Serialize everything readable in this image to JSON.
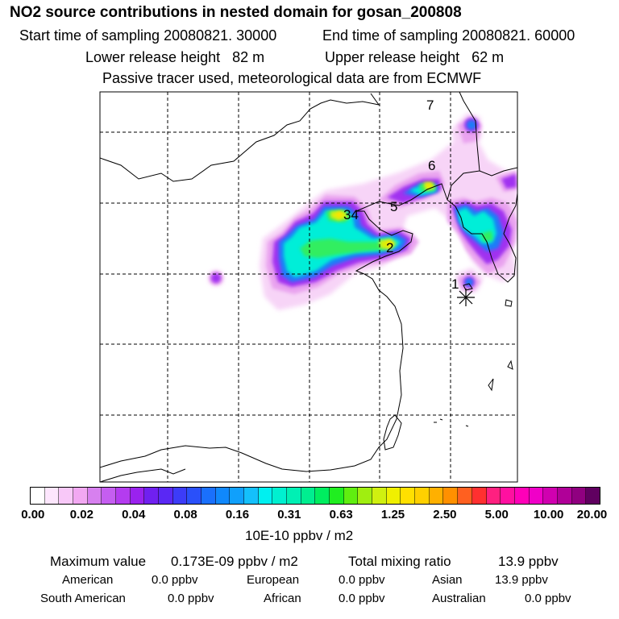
{
  "title": "NO2 source contributions in nested domain for gosan_200808",
  "sampling": {
    "start": "Start time of sampling 20080821. 30000",
    "end": "End time of sampling 20080821. 60000"
  },
  "release": {
    "lower": "Lower release height   82 m",
    "upper": "Upper release height   62 m"
  },
  "note": "Passive tracer used, meteorological data are from ECMWF",
  "map": {
    "sources": [
      {
        "id": "1",
        "label": "1"
      },
      {
        "id": "2",
        "label": "2"
      },
      {
        "id": "34",
        "label": "34"
      },
      {
        "id": "5",
        "label": "5"
      },
      {
        "id": "6",
        "label": "6"
      },
      {
        "id": "7",
        "label": "7"
      }
    ],
    "receptor_marker": "star-burst-icon"
  },
  "colorbar": {
    "ticks": [
      "0.00",
      "0.02",
      "0.04",
      "0.08",
      "0.16",
      "0.31",
      "0.63",
      "1.25",
      "2.50",
      "5.00",
      "10.00",
      "20.00"
    ],
    "unit": "10E-10 ppbv / m2",
    "colors": [
      "#ffffff",
      "#fde6fd",
      "#f8c8f8",
      "#f2a8f2",
      "#d780ef",
      "#c55ef0",
      "#b43cef",
      "#9a22ee",
      "#7020f0",
      "#5a28f4",
      "#3c3cf8",
      "#2a50fa",
      "#1a70fc",
      "#1088fc",
      "#10a0fc",
      "#14c0fc",
      "#00f0f0",
      "#00f0d0",
      "#00f0b4",
      "#00ee90",
      "#00ee60",
      "#20ee20",
      "#60ee10",
      "#a0ee10",
      "#d0f010",
      "#f0f000",
      "#ffe000",
      "#ffd000",
      "#ffb000",
      "#ff9000",
      "#ff6020",
      "#ff3030",
      "#ff2080",
      "#ff10a0",
      "#ff00b8",
      "#f000c8",
      "#d000b0",
      "#b00098",
      "#900080",
      "#600060"
    ]
  },
  "summary": {
    "max_label": "Maximum value",
    "max_value": "0.173E-09 ppbv / m2",
    "total_label": "Total mixing ratio",
    "total_value": "13.9 ppbv",
    "regions": [
      {
        "name": "American",
        "value": "0.0 ppbv"
      },
      {
        "name": "European",
        "value": "0.0 ppbv"
      },
      {
        "name": "Asian",
        "value": "13.9 ppbv"
      },
      {
        "name": "South American",
        "value": "0.0 ppbv"
      },
      {
        "name": "African",
        "value": "0.0 ppbv"
      },
      {
        "name": "Australian",
        "value": "0.0 ppbv"
      }
    ]
  }
}
